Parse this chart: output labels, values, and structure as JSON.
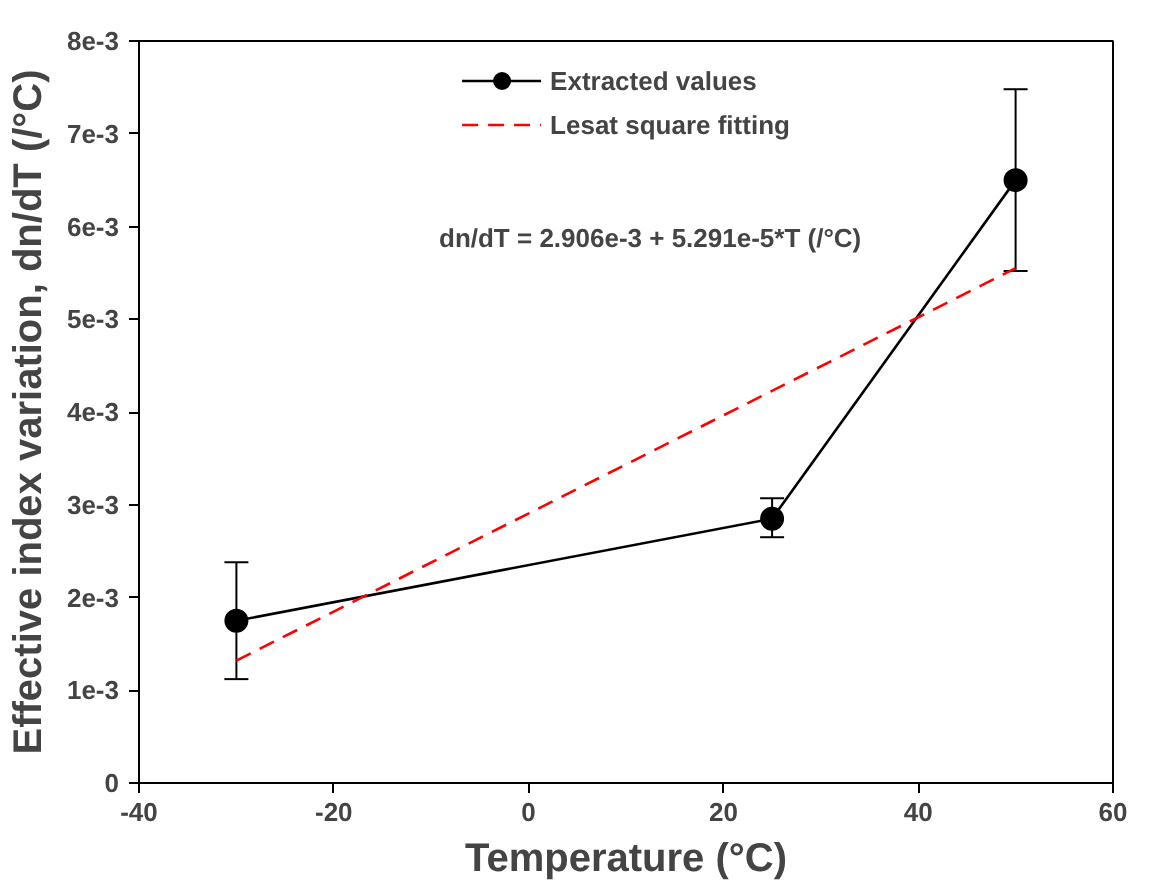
{
  "chart_data": {
    "type": "line",
    "xlabel": "Temperature (°C)",
    "ylabel": "Effective index variation, dn/dT (/°C)",
    "xlim": [
      -40,
      60
    ],
    "xticks": [
      -40,
      -20,
      0,
      20,
      40,
      60
    ],
    "ylim": [
      0,
      0.008
    ],
    "yticks": [
      0,
      {
        "value": 0.001,
        "label": "1e-3"
      },
      {
        "value": 0.002,
        "label": "2e-3"
      },
      {
        "value": 0.003,
        "label": "3e-3"
      },
      {
        "value": 0.004,
        "label": "4e-3"
      },
      {
        "value": 0.005,
        "label": "5e-3"
      },
      {
        "value": 0.006,
        "label": "6e-3"
      },
      {
        "value": 0.007,
        "label": "7e-3"
      },
      {
        "value": 0.008,
        "label": "8e-3"
      }
    ],
    "grid": false,
    "legend": "top",
    "series": [
      {
        "name": "Extracted values",
        "color": "#000000",
        "marker": "circle",
        "line_style": "solid",
        "x": [
          -30,
          25,
          50
        ],
        "values": [
          0.00175,
          0.00285,
          0.0065
        ],
        "errors": [
          [
            0.00112,
            0.00238
          ],
          [
            0.00265,
            0.00307
          ],
          [
            0.00552,
            0.00748
          ]
        ]
      },
      {
        "name": "Lesat square fitting",
        "color": "#ff0000",
        "marker": "none",
        "line_style": "dashed",
        "x": [
          -30,
          50
        ],
        "values": [
          0.00132,
          0.00555
        ]
      }
    ],
    "annotations": [
      "dn/dT = 2.906e-3 + 5.291e-5*T (/°C)"
    ]
  }
}
